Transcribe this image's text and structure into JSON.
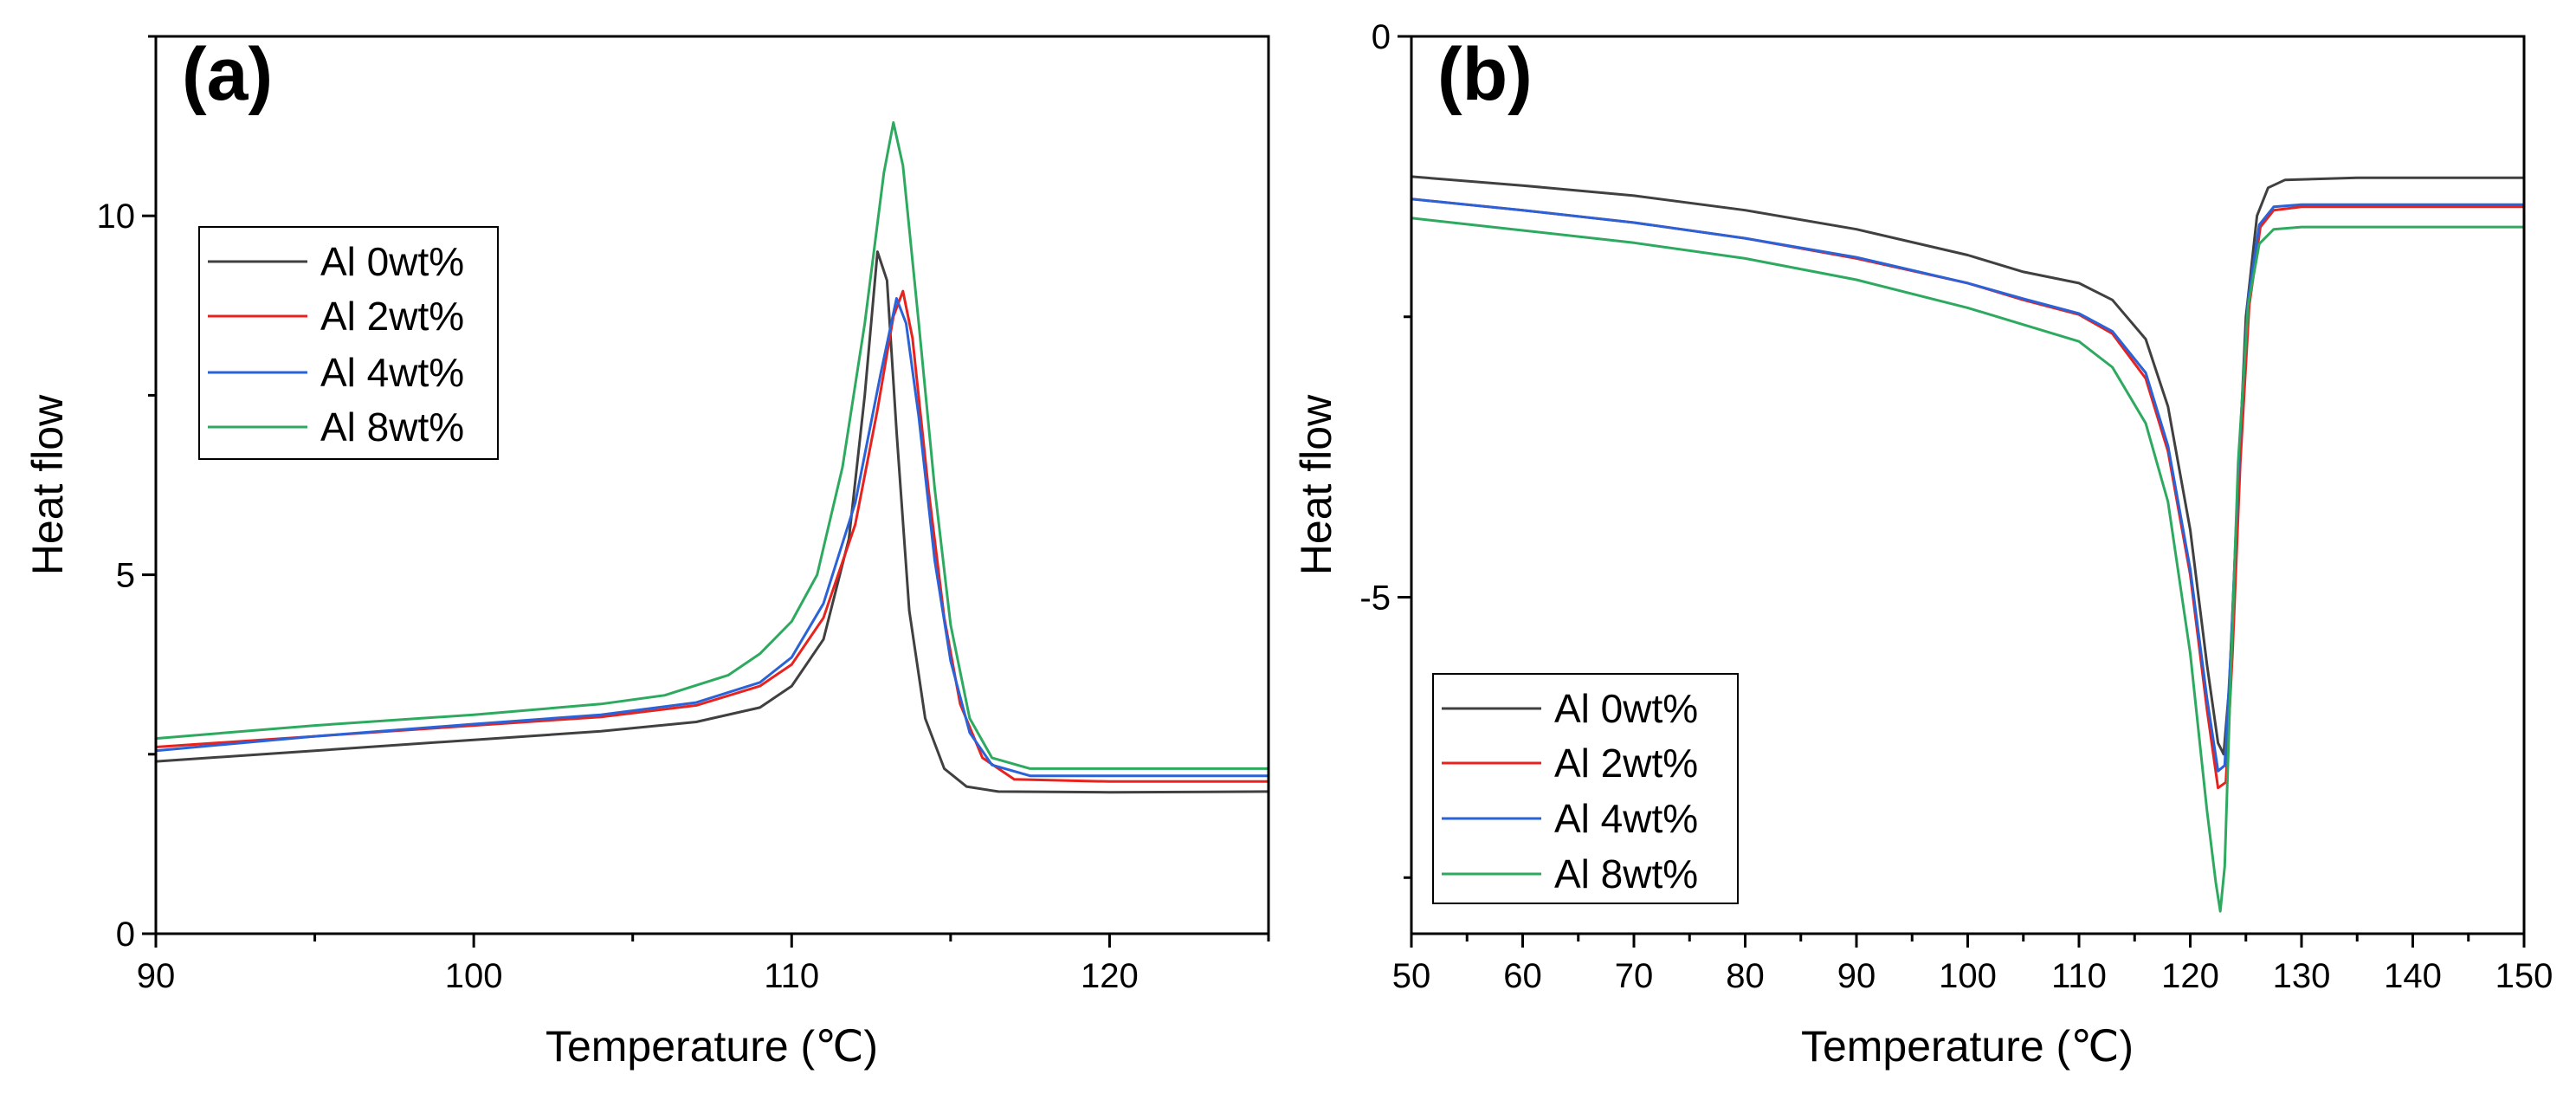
{
  "chart_data": [
    {
      "type": "line",
      "panel_label": "(a)",
      "xlabel": "Temperature (℃)",
      "ylabel": "Heat flow",
      "xlim": [
        90,
        125
      ],
      "ylim": [
        0,
        12.5
      ],
      "xticks": [
        90,
        100,
        110,
        120
      ],
      "yticks": [
        0,
        5,
        10
      ],
      "grid": false,
      "legend_position": "top-left",
      "series": [
        {
          "name": "Al 0wt%",
          "color": "#404040",
          "points": [
            [
              90,
              2.4
            ],
            [
              95,
              2.55
            ],
            [
              100,
              2.7
            ],
            [
              104,
              2.82
            ],
            [
              107,
              2.95
            ],
            [
              109,
              3.15
            ],
            [
              110,
              3.45
            ],
            [
              111,
              4.1
            ],
            [
              111.8,
              5.5
            ],
            [
              112.3,
              7.5
            ],
            [
              112.7,
              9.5
            ],
            [
              113,
              9.1
            ],
            [
              113.3,
              7.0
            ],
            [
              113.7,
              4.5
            ],
            [
              114.2,
              3.0
            ],
            [
              114.8,
              2.3
            ],
            [
              115.5,
              2.05
            ],
            [
              116.5,
              1.98
            ],
            [
              120,
              1.97
            ],
            [
              125,
              1.98
            ]
          ]
        },
        {
          "name": "Al 2wt%",
          "color": "#e8231f",
          "points": [
            [
              90,
              2.6
            ],
            [
              95,
              2.75
            ],
            [
              100,
              2.9
            ],
            [
              104,
              3.02
            ],
            [
              107,
              3.18
            ],
            [
              109,
              3.45
            ],
            [
              110,
              3.75
            ],
            [
              111,
              4.4
            ],
            [
              112,
              5.7
            ],
            [
              112.7,
              7.3
            ],
            [
              113.2,
              8.6
            ],
            [
              113.5,
              8.95
            ],
            [
              113.8,
              8.3
            ],
            [
              114.3,
              6.2
            ],
            [
              114.8,
              4.4
            ],
            [
              115.3,
              3.2
            ],
            [
              116,
              2.45
            ],
            [
              117,
              2.15
            ],
            [
              120,
              2.12
            ],
            [
              125,
              2.12
            ]
          ]
        },
        {
          "name": "Al 4wt%",
          "color": "#2a62d8",
          "points": [
            [
              90,
              2.55
            ],
            [
              95,
              2.75
            ],
            [
              100,
              2.92
            ],
            [
              104,
              3.05
            ],
            [
              107,
              3.22
            ],
            [
              109,
              3.5
            ],
            [
              110,
              3.85
            ],
            [
              111,
              4.6
            ],
            [
              112,
              6.0
            ],
            [
              112.8,
              7.8
            ],
            [
              113.3,
              8.85
            ],
            [
              113.6,
              8.5
            ],
            [
              114,
              7.2
            ],
            [
              114.5,
              5.2
            ],
            [
              115,
              3.8
            ],
            [
              115.6,
              2.8
            ],
            [
              116.3,
              2.35
            ],
            [
              117.5,
              2.2
            ],
            [
              125,
              2.2
            ]
          ]
        },
        {
          "name": "Al 8wt%",
          "color": "#2eaa60",
          "points": [
            [
              90,
              2.72
            ],
            [
              95,
              2.9
            ],
            [
              100,
              3.05
            ],
            [
              104,
              3.2
            ],
            [
              106,
              3.32
            ],
            [
              108,
              3.6
            ],
            [
              109,
              3.9
            ],
            [
              110,
              4.35
            ],
            [
              110.8,
              5.0
            ],
            [
              111.6,
              6.5
            ],
            [
              112.3,
              8.5
            ],
            [
              112.9,
              10.6
            ],
            [
              113.2,
              11.3
            ],
            [
              113.5,
              10.7
            ],
            [
              114,
              8.5
            ],
            [
              114.5,
              6.2
            ],
            [
              115,
              4.3
            ],
            [
              115.6,
              3.0
            ],
            [
              116.3,
              2.45
            ],
            [
              117.5,
              2.3
            ],
            [
              125,
              2.3
            ]
          ]
        }
      ],
      "legend": [
        "Al 0wt%",
        "Al 2wt%",
        "Al 4wt%",
        "Al 8wt%"
      ]
    },
    {
      "type": "line",
      "panel_label": "(b)",
      "xlabel": "Temperature (℃)",
      "ylabel": "Heat flow",
      "xlim": [
        50,
        150
      ],
      "ylim": [
        -8,
        0
      ],
      "xticks": [
        50,
        60,
        70,
        80,
        90,
        100,
        110,
        120,
        130,
        140,
        150
      ],
      "yticks": [
        0,
        -5
      ],
      "ytick_labels": [
        "0",
        "-5"
      ],
      "grid": false,
      "legend_position": "bottom-left",
      "series": [
        {
          "name": "Al 0wt%",
          "color": "#404040",
          "points": [
            [
              50,
              -1.25
            ],
            [
              60,
              -1.33
            ],
            [
              70,
              -1.42
            ],
            [
              80,
              -1.55
            ],
            [
              90,
              -1.72
            ],
            [
              100,
              -1.95
            ],
            [
              105,
              -2.1
            ],
            [
              110,
              -2.2
            ],
            [
              113,
              -2.35
            ],
            [
              116,
              -2.7
            ],
            [
              118,
              -3.3
            ],
            [
              120,
              -4.4
            ],
            [
              121.5,
              -5.6
            ],
            [
              122.5,
              -6.3
            ],
            [
              123,
              -6.4
            ],
            [
              123.5,
              -5.8
            ],
            [
              124.3,
              -4.0
            ],
            [
              125,
              -2.5
            ],
            [
              126,
              -1.6
            ],
            [
              127,
              -1.35
            ],
            [
              128.5,
              -1.28
            ],
            [
              135,
              -1.26
            ],
            [
              150,
              -1.26
            ]
          ]
        },
        {
          "name": "Al 2wt%",
          "color": "#e8231f",
          "points": [
            [
              50,
              -1.45
            ],
            [
              60,
              -1.55
            ],
            [
              70,
              -1.66
            ],
            [
              80,
              -1.8
            ],
            [
              90,
              -1.98
            ],
            [
              100,
              -2.2
            ],
            [
              105,
              -2.35
            ],
            [
              110,
              -2.48
            ],
            [
              113,
              -2.65
            ],
            [
              116,
              -3.05
            ],
            [
              118,
              -3.7
            ],
            [
              120,
              -4.8
            ],
            [
              121.5,
              -6.0
            ],
            [
              122.5,
              -6.7
            ],
            [
              123.2,
              -6.65
            ],
            [
              123.8,
              -5.5
            ],
            [
              124.5,
              -3.8
            ],
            [
              125.3,
              -2.4
            ],
            [
              126.3,
              -1.7
            ],
            [
              127.5,
              -1.55
            ],
            [
              130,
              -1.52
            ],
            [
              150,
              -1.52
            ]
          ]
        },
        {
          "name": "Al 4wt%",
          "color": "#2a62d8",
          "points": [
            [
              50,
              -1.45
            ],
            [
              60,
              -1.55
            ],
            [
              70,
              -1.66
            ],
            [
              80,
              -1.8
            ],
            [
              90,
              -1.97
            ],
            [
              100,
              -2.2
            ],
            [
              105,
              -2.34
            ],
            [
              110,
              -2.47
            ],
            [
              113,
              -2.63
            ],
            [
              116,
              -3.0
            ],
            [
              118,
              -3.65
            ],
            [
              120,
              -4.75
            ],
            [
              121.5,
              -5.9
            ],
            [
              122.5,
              -6.55
            ],
            [
              123.1,
              -6.5
            ],
            [
              123.7,
              -5.4
            ],
            [
              124.4,
              -3.7
            ],
            [
              125.2,
              -2.35
            ],
            [
              126.2,
              -1.68
            ],
            [
              127.5,
              -1.52
            ],
            [
              130,
              -1.5
            ],
            [
              150,
              -1.5
            ]
          ]
        },
        {
          "name": "Al 8wt%",
          "color": "#2eaa60",
          "points": [
            [
              50,
              -1.62
            ],
            [
              60,
              -1.73
            ],
            [
              70,
              -1.84
            ],
            [
              80,
              -1.98
            ],
            [
              90,
              -2.17
            ],
            [
              100,
              -2.42
            ],
            [
              105,
              -2.57
            ],
            [
              110,
              -2.72
            ],
            [
              113,
              -2.95
            ],
            [
              116,
              -3.45
            ],
            [
              118,
              -4.15
            ],
            [
              120,
              -5.5
            ],
            [
              121.5,
              -6.9
            ],
            [
              122.3,
              -7.55
            ],
            [
              122.7,
              -7.8
            ],
            [
              123.1,
              -7.4
            ],
            [
              123.6,
              -5.8
            ],
            [
              124.3,
              -3.8
            ],
            [
              125.2,
              -2.4
            ],
            [
              126.2,
              -1.85
            ],
            [
              127.5,
              -1.72
            ],
            [
              130,
              -1.7
            ],
            [
              150,
              -1.7
            ]
          ]
        }
      ],
      "legend": [
        "Al 0wt%",
        "Al 2wt%",
        "Al 4wt%",
        "Al 8wt%"
      ]
    }
  ]
}
